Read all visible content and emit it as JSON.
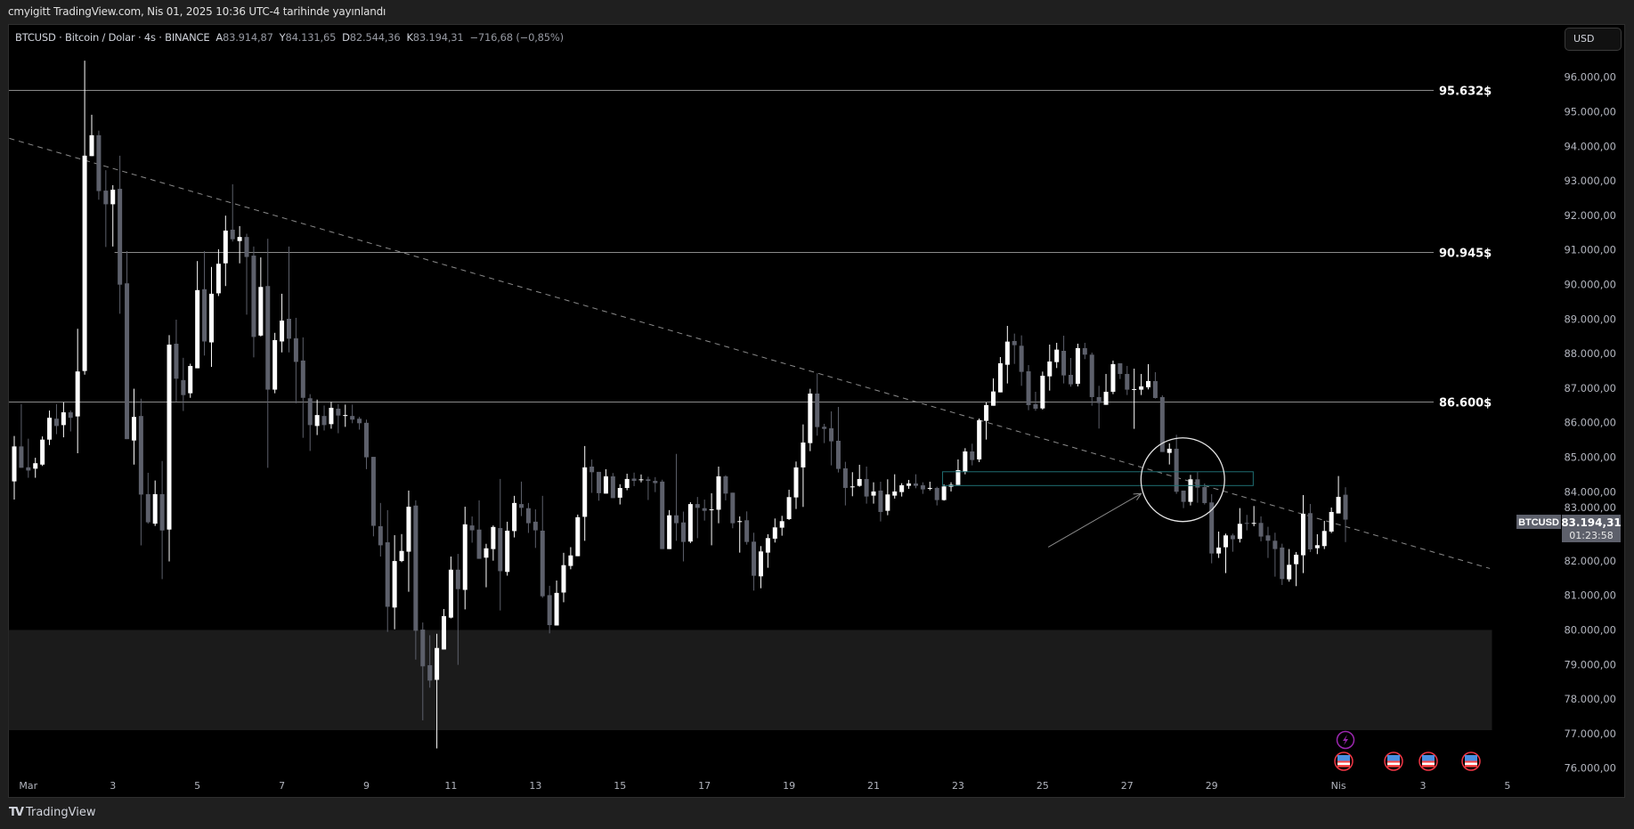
{
  "topbar": {
    "published": "cmyigitt TradingView.com, Nis 01, 2025 10:36 UTC-4 tarihinde yayınlandı"
  },
  "legend": {
    "symbol": "BTCUSD · Bitcoin / Dolar · 4s · BINANCE",
    "open_label": "A",
    "open": "83.914,87",
    "high_label": "Y",
    "high": "84.131,65",
    "low_label": "D",
    "low": "82.544,36",
    "close_label": "K",
    "close": "83.194,31",
    "change": "−716,68 (−0,85%)"
  },
  "currency_button": "USD",
  "last_price": {
    "symbol": "BTCUSD",
    "price": "83.194,31",
    "countdown": "01:23:58"
  },
  "footer": {
    "logo_glyph": "TV",
    "brand": "TradingView"
  },
  "colors": {
    "up": "#ffffff",
    "down": "#5d606b",
    "level_line": "#8a8a8a",
    "trendline": "#8a8a8a",
    "zone": "#1b1b1b",
    "box": "#1f6f73",
    "event_lightning": "#9c27b0",
    "event_flag": "#f23645"
  },
  "event_icons": [
    "lightning-icon",
    "us-flag-icon",
    "us-flag-icon",
    "us-flag-icon",
    "us-flag-icon"
  ],
  "chart_data": {
    "type": "candlestick",
    "interval": "4s",
    "ylim": [
      75800,
      96900
    ],
    "yticks": [
      96000,
      95000,
      94000,
      93000,
      92000,
      91000,
      90000,
      89000,
      88000,
      87000,
      86000,
      85000,
      84000,
      83000,
      82000,
      81000,
      80000,
      79000,
      78000,
      77000,
      76000
    ],
    "ytick_labels": [
      "96.000,00",
      "95.000,00",
      "94.000,00",
      "93.000,00",
      "92.000,00",
      "91.000,00",
      "90.000,00",
      "89.000,00",
      "88.000,00",
      "87.000,00",
      "86.000,00",
      "85.000,00",
      "84.000,00",
      "83.000,00",
      "82.000,00",
      "81.000,00",
      "80.000,00",
      "79.000,00",
      "78.000,00",
      "77.000,00",
      "76.000,00"
    ],
    "xticks": [
      {
        "label": "Mar",
        "day": 1
      },
      {
        "label": "3",
        "day": 3
      },
      {
        "label": "5",
        "day": 5
      },
      {
        "label": "7",
        "day": 7
      },
      {
        "label": "9",
        "day": 9
      },
      {
        "label": "11",
        "day": 11
      },
      {
        "label": "13",
        "day": 13
      },
      {
        "label": "15",
        "day": 15
      },
      {
        "label": "17",
        "day": 17
      },
      {
        "label": "19",
        "day": 19
      },
      {
        "label": "21",
        "day": 21
      },
      {
        "label": "23",
        "day": 23
      },
      {
        "label": "25",
        "day": 25
      },
      {
        "label": "27",
        "day": 27
      },
      {
        "label": "29",
        "day": 29
      },
      {
        "label": "Nis",
        "day": 32
      },
      {
        "label": "3",
        "day": 34
      },
      {
        "label": "5",
        "day": 36
      }
    ],
    "levels": [
      {
        "price": 95632,
        "label": "95.632$",
        "from_candle": 0
      },
      {
        "price": 90945,
        "label": "90.945$",
        "from_candle": 15
      },
      {
        "price": 86600,
        "label": "86.600$",
        "from_candle": 0
      }
    ],
    "trendline": {
      "from": {
        "candle": -0.7,
        "price": 94230
      },
      "to": {
        "candle": 209.5,
        "price": 81780
      },
      "style": "dashed"
    },
    "zone": {
      "from_candle": -0.8,
      "to_candle": 209.8,
      "top": 80000,
      "bottom": 77100
    },
    "box": {
      "from_candle": 131.8,
      "to_candle": 175.9,
      "top": 84580,
      "bottom": 84180
    },
    "circle": {
      "candle": 165.9,
      "price": 84350,
      "radius_price": 1210
    },
    "arrow": {
      "from": {
        "candle": 146.8,
        "price": 82400
      },
      "to": {
        "candle": 160,
        "price": 83950
      }
    },
    "ohlc": [
      [
        84301,
        85616,
        83775,
        85313
      ],
      [
        85313,
        86536,
        84695,
        84695
      ],
      [
        84708,
        85537,
        84406,
        84616
      ],
      [
        84669,
        84985,
        84406,
        84827
      ],
      [
        84787,
        85603,
        84748,
        85510
      ],
      [
        85510,
        86352,
        85353,
        86142
      ],
      [
        86115,
        86536,
        85668,
        85905
      ],
      [
        85931,
        86589,
        85577,
        86300
      ],
      [
        86300,
        86352,
        85747,
        86142
      ],
      [
        86181,
        88719,
        85116,
        87483
      ],
      [
        87496,
        96478,
        87391,
        93729
      ],
      [
        93716,
        94913,
        93716,
        94321
      ],
      [
        94321,
        94453,
        92454,
        92704
      ],
      [
        92717,
        93308,
        91086,
        92322
      ],
      [
        92322,
        92875,
        91099,
        92743
      ],
      [
        92769,
        93729,
        89153,
        89995
      ],
      [
        90034,
        90968,
        85524,
        85524
      ],
      [
        85484,
        86983,
        84787,
        86168
      ],
      [
        86194,
        86694,
        82447,
        83919
      ],
      [
        83932,
        84550,
        83078,
        83117
      ],
      [
        83078,
        84327,
        83012,
        83932
      ],
      [
        83932,
        84892,
        81473,
        82881
      ],
      [
        82907,
        88535,
        81986,
        88259
      ],
      [
        88285,
        88982,
        86615,
        87273
      ],
      [
        87233,
        87878,
        86339,
        86799
      ],
      [
        86852,
        87707,
        86720,
        87641
      ],
      [
        87575,
        90678,
        87575,
        89837
      ],
      [
        89863,
        90968,
        87943,
        88351
      ],
      [
        88325,
        90508,
        87615,
        89732
      ],
      [
        89745,
        91020,
        89666,
        90600
      ],
      [
        90613,
        91993,
        89955,
        91560
      ],
      [
        91586,
        92901,
        91244,
        91310
      ],
      [
        91257,
        91691,
        90613,
        91375
      ],
      [
        91375,
        91468,
        89127,
        90797
      ],
      [
        90836,
        91099,
        87891,
        88482
      ],
      [
        88522,
        90784,
        88496,
        89929
      ],
      [
        89955,
        91323,
        84695,
        86957
      ],
      [
        86957,
        88601,
        86852,
        88390
      ],
      [
        88351,
        89732,
        88035,
        88956
      ],
      [
        89008,
        91099,
        88035,
        88430
      ],
      [
        88443,
        89035,
        86563,
        87759
      ],
      [
        87799,
        88469,
        85563,
        86720
      ],
      [
        86707,
        86826,
        85182,
        85931
      ],
      [
        85905,
        86668,
        85642,
        86221
      ],
      [
        86194,
        86497,
        85774,
        85931
      ],
      [
        85958,
        86602,
        85826,
        86431
      ],
      [
        86405,
        86536,
        85695,
        86207
      ],
      [
        86194,
        86523,
        85879,
        86221
      ],
      [
        86194,
        86523,
        85984,
        86089
      ],
      [
        86115,
        86168,
        85800,
        85984
      ],
      [
        85997,
        86089,
        84656,
        84998
      ],
      [
        85011,
        85011,
        82711,
        83015
      ],
      [
        83004,
        83677,
        82126,
        82451
      ],
      [
        82538,
        83470,
        79946,
        80672
      ],
      [
        80650,
        82744,
        80021,
        81995
      ],
      [
        81995,
        82776,
        81963,
        82288
      ],
      [
        82267,
        84035,
        81106,
        83568
      ],
      [
        83601,
        83752,
        79143,
        79978
      ],
      [
        80011,
        80217,
        77386,
        78948
      ],
      [
        78980,
        79848,
        78330,
        78535
      ],
      [
        78557,
        79891,
        76572,
        79479
      ],
      [
        79436,
        80607,
        79436,
        80401
      ],
      [
        80358,
        82126,
        80336,
        81746
      ],
      [
        81746,
        82202,
        78991,
        81182
      ],
      [
        81160,
        83568,
        80596,
        83058
      ],
      [
        83026,
        83286,
        82527,
        82885
      ],
      [
        82906,
        83752,
        82060,
        82060
      ],
      [
        82093,
        82494,
        81236,
        82364
      ],
      [
        82342,
        83026,
        82006,
        82982
      ],
      [
        82950,
        84371,
        80564,
        81702
      ],
      [
        81681,
        83134,
        81572,
        82874
      ],
      [
        82863,
        83883,
        82679,
        83677
      ],
      [
        83644,
        84295,
        83297,
        83535
      ],
      [
        83525,
        83677,
        82809,
        83091
      ],
      [
        83134,
        83492,
        82375,
        82885
      ],
      [
        82874,
        83883,
        80932,
        80976
      ],
      [
        81008,
        81279,
        79902,
        80141
      ],
      [
        80130,
        81432,
        80130,
        81074
      ],
      [
        81084,
        82234,
        80802,
        81876
      ],
      [
        81854,
        82397,
        81757,
        82158
      ],
      [
        82136,
        83340,
        82136,
        83264
      ],
      [
        83275,
        85325,
        82581,
        84707
      ],
      [
        84729,
        84934,
        83969,
        84566
      ],
      [
        84577,
        84577,
        83742,
        83959
      ],
      [
        83948,
        84653,
        83948,
        84447
      ],
      [
        84447,
        84544,
        83817,
        83817
      ],
      [
        83829,
        84219,
        83633,
        84110
      ],
      [
        84110,
        84523,
        84045,
        84371
      ],
      [
        84382,
        84555,
        84164,
        84316
      ],
      [
        84338,
        84501,
        84273,
        84360
      ],
      [
        84360,
        84436,
        83763,
        84316
      ],
      [
        84316,
        84425,
        83991,
        84251
      ],
      [
        84295,
        84349,
        82342,
        82342
      ],
      [
        82342,
        83470,
        82342,
        83319
      ],
      [
        83319,
        85097,
        82581,
        83091
      ],
      [
        83113,
        83427,
        81985,
        82549
      ],
      [
        82560,
        83698,
        82516,
        83644
      ],
      [
        83644,
        83850,
        82657,
        83535
      ],
      [
        83525,
        83774,
        83167,
        83449
      ],
      [
        83471,
        83958,
        82451,
        83492
      ],
      [
        83481,
        84729,
        83091,
        84447
      ],
      [
        84447,
        84479,
        83752,
        83948
      ],
      [
        83974,
        83974,
        82944,
        83090
      ],
      [
        83124,
        83287,
        82239,
        83150
      ],
      [
        83176,
        83433,
        82471,
        82548
      ],
      [
        82557,
        82815,
        81140,
        81569
      ],
      [
        81552,
        82428,
        81208,
        82274
      ],
      [
        82239,
        82772,
        81801,
        82660
      ],
      [
        82643,
        83227,
        82531,
        82970
      ],
      [
        82961,
        83304,
        82729,
        83150
      ],
      [
        83210,
        84060,
        83184,
        83846
      ],
      [
        83837,
        84876,
        83502,
        84705
      ],
      [
        84705,
        85950,
        83562,
        85426
      ],
      [
        85409,
        86981,
        85177,
        86843
      ],
      [
        86843,
        87428,
        85624,
        85873
      ],
      [
        85881,
        85967,
        85409,
        85821
      ],
      [
        85838,
        86328,
        84765,
        85460
      ],
      [
        85477,
        86457,
        84559,
        84662
      ],
      [
        84679,
        84868,
        83605,
        84112
      ],
      [
        84129,
        84567,
        83871,
        84155
      ],
      [
        84172,
        84782,
        84146,
        84370
      ],
      [
        84370,
        84730,
        83657,
        83863
      ],
      [
        83889,
        84275,
        83657,
        84009
      ],
      [
        84035,
        84292,
        83141,
        83416
      ],
      [
        83450,
        84361,
        83322,
        83923
      ],
      [
        83889,
        84507,
        83803,
        84009
      ],
      [
        83992,
        84249,
        83863,
        84189
      ],
      [
        84172,
        84344,
        84086,
        84241
      ],
      [
        84241,
        84507,
        84103,
        84172
      ],
      [
        84189,
        84275,
        83940,
        84069
      ],
      [
        84095,
        84292,
        84043,
        84112
      ],
      [
        84112,
        84146,
        83605,
        83760
      ],
      [
        83760,
        84215,
        83743,
        84155
      ],
      [
        84146,
        84275,
        84009,
        84206
      ],
      [
        84198,
        84937,
        84198,
        84627
      ],
      [
        84576,
        85263,
        84507,
        85168
      ],
      [
        85168,
        85392,
        84765,
        84919
      ],
      [
        84937,
        86122,
        84859,
        86070
      ],
      [
        86053,
        86586,
        85512,
        86509
      ],
      [
        86491,
        87282,
        86491,
        86904
      ],
      [
        86878,
        87900,
        86878,
        87720
      ],
      [
        87677,
        88802,
        87136,
        88347
      ],
      [
        88364,
        88579,
        87702,
        88244
      ],
      [
        88227,
        88527,
        87067,
        87471
      ],
      [
        87488,
        87668,
        86362,
        86509
      ],
      [
        86534,
        86895,
        86345,
        86405
      ],
      [
        86414,
        87479,
        86379,
        87359
      ],
      [
        87342,
        88261,
        86929,
        87771
      ],
      [
        87754,
        88312,
        87582,
        88115
      ],
      [
        88080,
        88518,
        87136,
        87368
      ],
      [
        87385,
        87874,
        87041,
        87110
      ],
      [
        87127,
        88287,
        87050,
        88158
      ],
      [
        88158,
        88312,
        87840,
        87969
      ],
      [
        87969,
        88029,
        86492,
        86741
      ],
      [
        86741,
        87067,
        85830,
        86569
      ],
      [
        86517,
        87411,
        86517,
        86895
      ],
      [
        86895,
        87797,
        86827,
        87694
      ],
      [
        87720,
        87720,
        87265,
        87411
      ],
      [
        87411,
        87643,
        86801,
        86956
      ],
      [
        86947,
        87565,
        85822,
        86973
      ],
      [
        86956,
        87411,
        86801,
        87050
      ],
      [
        87024,
        87694,
        86964,
        87205
      ],
      [
        87205,
        87462,
        86698,
        86715
      ],
      [
        86741,
        86792,
        85152,
        85152
      ],
      [
        85126,
        85401,
        84791,
        85246
      ],
      [
        85246,
        85650,
        83940,
        84001
      ],
      [
        84035,
        84035,
        83528,
        83709
      ],
      [
        83709,
        84490,
        83605,
        84361
      ],
      [
        84361,
        84567,
        83683,
        84121
      ],
      [
        84138,
        84241,
        83631,
        83674
      ],
      [
        83691,
        83932,
        81930,
        82214
      ],
      [
        82214,
        82849,
        82085,
        82386
      ],
      [
        82394,
        82789,
        81647,
        82738
      ],
      [
        82738,
        82789,
        82265,
        82626
      ],
      [
        82635,
        83528,
        82532,
        83073
      ],
      [
        83099,
        83331,
        82884,
        83082
      ],
      [
        83073,
        83588,
        83004,
        83099
      ],
      [
        83099,
        83288,
        82566,
        82704
      ],
      [
        82738,
        82987,
        82085,
        82583
      ],
      [
        82583,
        82815,
        81544,
        82343
      ],
      [
        82386,
        82497,
        81303,
        81475
      ],
      [
        81466,
        82343,
        81398,
        81887
      ],
      [
        81904,
        82257,
        81269,
        82179
      ],
      [
        82162,
        83906,
        81647,
        83365
      ],
      [
        83382,
        83648,
        82257,
        82334
      ],
      [
        82368,
        82772,
        82197,
        82454
      ],
      [
        82429,
        83159,
        82343,
        82866
      ],
      [
        82849,
        83545,
        82807,
        83416
      ],
      [
        83374,
        84456,
        83374,
        83854
      ],
      [
        83914.87,
        84131.65,
        82544.36,
        83194.31
      ]
    ]
  }
}
